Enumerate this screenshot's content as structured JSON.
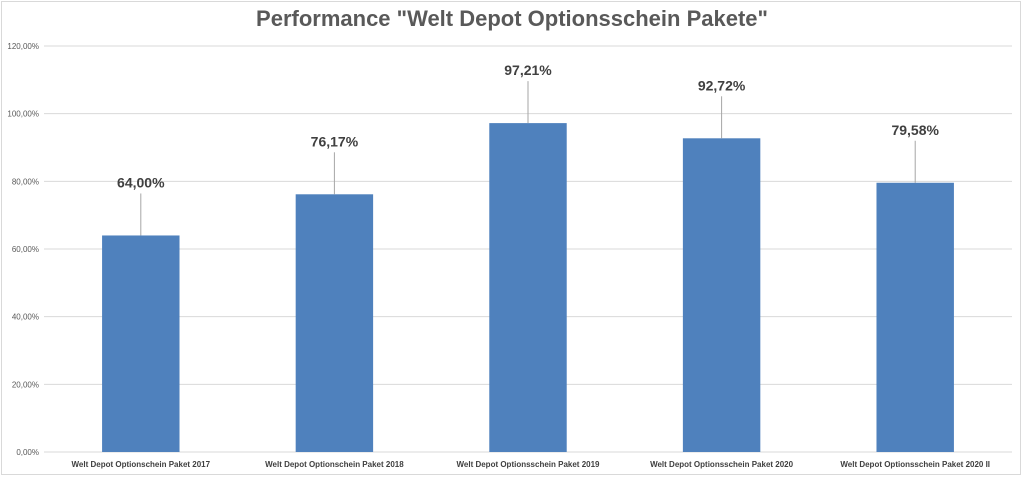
{
  "chart_data": {
    "type": "bar",
    "title": "Performance \"Welt Depot Optionsschein Pakete\"",
    "xlabel": "",
    "ylabel": "",
    "categories": [
      "Welt Depot Optionschein Paket 2017",
      "Welt Depot Optionschein Paket 2018",
      "Welt Depot Optionsschein Paket 2019",
      "Welt Depot Optionsschein Paket 2020",
      "Welt Depot Optionsschein Paket 2020 II"
    ],
    "values": [
      64.0,
      76.17,
      97.21,
      92.72,
      79.58
    ],
    "data_labels": [
      "64,00%",
      "76,17%",
      "97,21%",
      "92,72%",
      "79,58%"
    ],
    "ylim": [
      0,
      120
    ],
    "yticks": [
      0,
      20,
      40,
      60,
      80,
      100,
      120
    ],
    "ytick_labels": [
      "0,00%",
      "20,00%",
      "40,00%",
      "60,00%",
      "80,00%",
      "100,00%",
      "120,00%"
    ],
    "grid": true,
    "legend": "none",
    "bar_color": "#4f81bd",
    "grid_color": "#d9d9d9"
  }
}
